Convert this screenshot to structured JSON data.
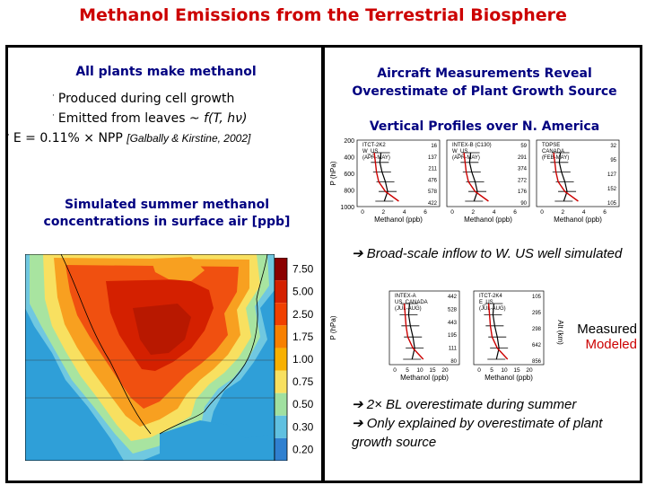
{
  "title": "Methanol Emissions from the Terrestrial Biosphere",
  "left": {
    "heading": "All plants make methanol",
    "bullets": [
      {
        "symbol": "·",
        "text": "Produced during cell growth"
      },
      {
        "symbol": "·",
        "text": "Emitted from leaves ~ ",
        "italic": "f(T, hν)"
      },
      {
        "symbol": "·",
        "text": "E = 0.11% × NPP ",
        "citation": "[Galbally & Kirstine, 2002]"
      }
    ],
    "sim_heading": "Simulated summer methanol concentrations in surface air [ppb]",
    "map": {
      "colorbar_labels": [
        "7.50",
        "5.00",
        "2.50",
        "1.75",
        "1.00",
        "0.75",
        "0.50",
        "0.30",
        "0.20"
      ],
      "colorbar_colors": [
        "#8b0000",
        "#d42000",
        "#f04000",
        "#f88000",
        "#f8b000",
        "#f8e060",
        "#a0e0a0",
        "#60c0e0",
        "#3080d0"
      ],
      "ocean_color": "#2f9fd8"
    }
  },
  "right": {
    "heading": "Aircraft Measurements Reveal Overestimate of Plant Growth Source",
    "profiles_heading": "Vertical Profiles over N. America",
    "top_panels": {
      "y_axis_label": "P (hPa)",
      "y_ticks": [
        "200",
        "400",
        "600",
        "800",
        "1000"
      ],
      "x_label": "Methanol (ppb)",
      "panels": [
        {
          "label": "ITCT-2K2\nW_US\n(APR-MAY)",
          "right_values": [
            "16",
            "137",
            "211",
            "476",
            "578",
            "422"
          ],
          "x_ticks": [
            "0",
            "2",
            "4",
            "6"
          ]
        },
        {
          "label": "INTEX-B (C130)\nW_US\n(APR-MAY)",
          "right_values": [
            "59",
            "291",
            "374",
            "272",
            "176",
            "90"
          ],
          "x_ticks": [
            "0",
            "2",
            "4",
            "6"
          ]
        },
        {
          "label": "TOPSE\nCANADA\n(FEB-MAY)",
          "right_values": [
            "32",
            "95",
            "127",
            "152",
            "105"
          ],
          "x_ticks": [
            "0",
            "2",
            "4",
            "6"
          ]
        }
      ]
    },
    "note1": "➔ Broad-scale inflow to W. US well simulated",
    "bottom_panels": {
      "y_axis_label": "P (hPa)",
      "x_label": "Methanol (ppb)",
      "alt_label": "Alt (km)",
      "panels": [
        {
          "label": "INTEX-A\nUS_CANADA\n(JUL-AUG)",
          "right_values": [
            "442",
            "528",
            "443",
            "195",
            "111",
            "80"
          ],
          "x_ticks": [
            "0",
            "5",
            "10",
            "15",
            "20"
          ]
        },
        {
          "label": "ITCT-2K4\nE_US\n(JUL-AUG)",
          "right_values": [
            "105",
            "295",
            "298",
            "642",
            "856"
          ],
          "x_ticks": [
            "0",
            "5",
            "10",
            "15",
            "20"
          ]
        }
      ]
    },
    "legend": {
      "measured": "Measured",
      "modeled": "Modeled",
      "measured_color": "#000000",
      "modeled_color": "#cc0000"
    },
    "note2_line1": "➔ 2× BL overestimate during summer",
    "note2_line2": "➔ Only explained by overestimate of plant growth source"
  }
}
